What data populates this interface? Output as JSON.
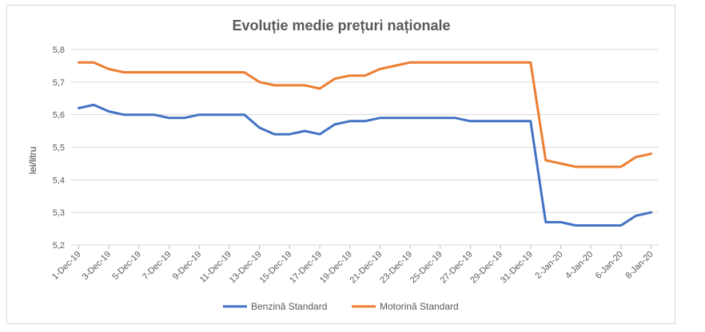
{
  "chart_data": {
    "type": "line",
    "title": "Evoluție medie prețuri naționale",
    "xlabel": "",
    "ylabel": "lei/litru",
    "ylim": [
      5.2,
      5.8
    ],
    "yticks": [
      "5,2",
      "5,3",
      "5,4",
      "5,5",
      "5,6",
      "5,7",
      "5,8"
    ],
    "grid": true,
    "legend": "bottom",
    "x": [
      "1-Dec-19",
      "2-Dec-19",
      "3-Dec-19",
      "4-Dec-19",
      "5-Dec-19",
      "6-Dec-19",
      "7-Dec-19",
      "8-Dec-19",
      "9-Dec-19",
      "10-Dec-19",
      "11-Dec-19",
      "12-Dec-19",
      "13-Dec-19",
      "14-Dec-19",
      "15-Dec-19",
      "16-Dec-19",
      "17-Dec-19",
      "18-Dec-19",
      "19-Dec-19",
      "20-Dec-19",
      "21-Dec-19",
      "22-Dec-19",
      "23-Dec-19",
      "24-Dec-19",
      "25-Dec-19",
      "26-Dec-19",
      "27-Dec-19",
      "28-Dec-19",
      "29-Dec-19",
      "30-Dec-19",
      "31-Dec-19",
      "1-Jan-20",
      "2-Jan-20",
      "3-Jan-20",
      "4-Jan-20",
      "5-Jan-20",
      "6-Jan-20",
      "7-Jan-20",
      "8-Jan-20"
    ],
    "xticks": [
      "1-Dec-19",
      "3-Dec-19",
      "5-Dec-19",
      "7-Dec-19",
      "9-Dec-19",
      "11-Dec-19",
      "13-Dec-19",
      "15-Dec-19",
      "17-Dec-19",
      "19-Dec-19",
      "21-Dec-19",
      "23-Dec-19",
      "25-Dec-19",
      "27-Dec-19",
      "29-Dec-19",
      "31-Dec-19",
      "2-Jan-20",
      "4-Jan-20",
      "6-Jan-20",
      "8-Jan-20"
    ],
    "series": [
      {
        "name": "Benzină Standard",
        "color": "#4472c4",
        "values": [
          5.62,
          5.63,
          5.61,
          5.6,
          5.6,
          5.6,
          5.59,
          5.59,
          5.6,
          5.6,
          5.6,
          5.6,
          5.56,
          5.54,
          5.54,
          5.55,
          5.54,
          5.57,
          5.58,
          5.58,
          5.59,
          5.59,
          5.59,
          5.59,
          5.59,
          5.59,
          5.58,
          5.58,
          5.58,
          5.58,
          5.58,
          5.27,
          5.27,
          5.26,
          5.26,
          5.26,
          5.26,
          5.29,
          5.3
        ]
      },
      {
        "name": "Motorină Standard",
        "color": "#ed7d31",
        "values": [
          5.76,
          5.76,
          5.74,
          5.73,
          5.73,
          5.73,
          5.73,
          5.73,
          5.73,
          5.73,
          5.73,
          5.73,
          5.7,
          5.69,
          5.69,
          5.69,
          5.68,
          5.71,
          5.72,
          5.72,
          5.74,
          5.75,
          5.76,
          5.76,
          5.76,
          5.76,
          5.76,
          5.76,
          5.76,
          5.76,
          5.76,
          5.46,
          5.45,
          5.44,
          5.44,
          5.44,
          5.44,
          5.47,
          5.48
        ]
      }
    ]
  }
}
